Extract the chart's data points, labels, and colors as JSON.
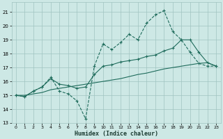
{
  "xlabel": "Humidex (Indice chaleur)",
  "xlim": [
    -0.5,
    23.5
  ],
  "ylim": [
    13,
    21.7
  ],
  "yticks": [
    13,
    14,
    15,
    16,
    17,
    18,
    19,
    20,
    21
  ],
  "xticks": [
    0,
    1,
    2,
    3,
    4,
    5,
    6,
    7,
    8,
    9,
    10,
    11,
    12,
    13,
    14,
    15,
    16,
    17,
    18,
    19,
    20,
    21,
    22,
    23
  ],
  "bg_color": "#cde8e5",
  "grid_color": "#a0c4c0",
  "line_color": "#1e6b5b",
  "line1_x": [
    0,
    1,
    2,
    3,
    4,
    5,
    6,
    7,
    8,
    9,
    10,
    11,
    12,
    13,
    14,
    15,
    16,
    17,
    18,
    19,
    20,
    21,
    22,
    23
  ],
  "line1_y": [
    15.0,
    14.9,
    15.3,
    15.6,
    16.3,
    15.3,
    15.1,
    14.6,
    13.3,
    17.1,
    18.7,
    18.3,
    18.8,
    19.4,
    19.0,
    20.2,
    20.8,
    21.1,
    19.6,
    19.0,
    18.1,
    17.3,
    17.1,
    17.1
  ],
  "line2_x": [
    0,
    1,
    2,
    3,
    4,
    5,
    6,
    7,
    8,
    9,
    10,
    11,
    12,
    13,
    14,
    15,
    16,
    17,
    18,
    19,
    20,
    21,
    22,
    23
  ],
  "line2_y": [
    15.0,
    15.0,
    15.1,
    15.2,
    15.4,
    15.5,
    15.6,
    15.7,
    15.8,
    15.9,
    16.0,
    16.1,
    16.2,
    16.35,
    16.5,
    16.6,
    16.75,
    16.9,
    17.0,
    17.1,
    17.2,
    17.3,
    17.35,
    17.1
  ],
  "line3_x": [
    0,
    1,
    2,
    3,
    4,
    5,
    6,
    7,
    8,
    9,
    10,
    11,
    12,
    13,
    14,
    15,
    16,
    17,
    18,
    19,
    20,
    21,
    22,
    23
  ],
  "line3_y": [
    15.0,
    14.9,
    15.3,
    15.6,
    16.2,
    15.8,
    15.7,
    15.5,
    15.6,
    16.5,
    17.1,
    17.2,
    17.4,
    17.5,
    17.6,
    17.8,
    17.9,
    18.2,
    18.4,
    19.0,
    19.0,
    18.1,
    17.35,
    17.1
  ]
}
